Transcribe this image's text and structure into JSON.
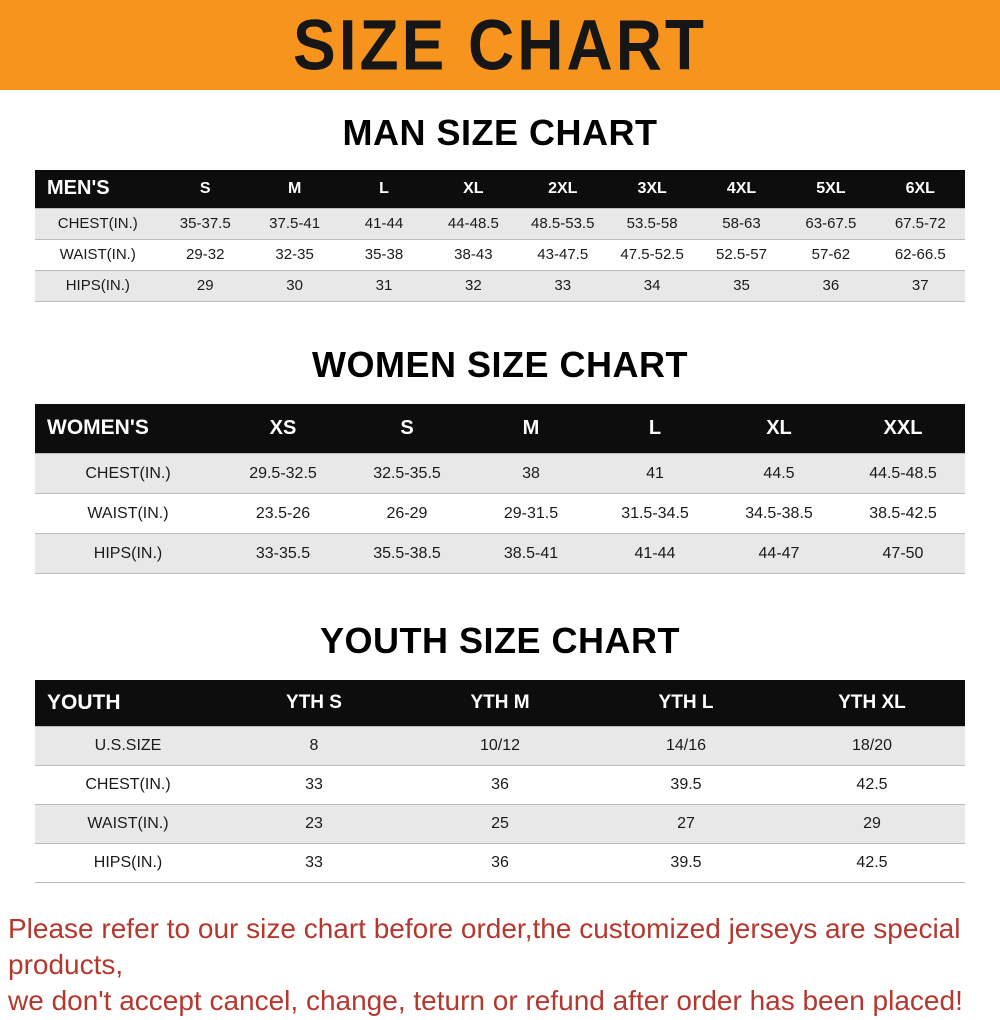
{
  "banner": {
    "title": "SIZE CHART"
  },
  "colors": {
    "banner_bg": "#f7941e",
    "header_bg": "#0d0d0d",
    "header_text": "#ffffff",
    "row_stripe": "#e8e8e8",
    "row_border": "#bdbdbd",
    "disclaimer_text": "#b5382e"
  },
  "chart_data": [
    {
      "type": "table",
      "title": "MAN SIZE CHART",
      "header": [
        "MEN'S",
        "S",
        "M",
        "L",
        "XL",
        "2XL",
        "3XL",
        "4XL",
        "5XL",
        "6XL"
      ],
      "rows": [
        [
          "CHEST(IN.)",
          "35-37.5",
          "37.5-41",
          "41-44",
          "44-48.5",
          "48.5-53.5",
          "53.5-58",
          "58-63",
          "63-67.5",
          "67.5-72"
        ],
        [
          "WAIST(IN.)",
          "29-32",
          "32-35",
          "35-38",
          "38-43",
          "43-47.5",
          "47.5-52.5",
          "52.5-57",
          "57-62",
          "62-66.5"
        ],
        [
          "HIPS(IN.)",
          "29",
          "30",
          "31",
          "32",
          "33",
          "34",
          "35",
          "36",
          "37"
        ]
      ]
    },
    {
      "type": "table",
      "title": "WOMEN SIZE CHART",
      "header": [
        "WOMEN'S",
        "XS",
        "S",
        "M",
        "L",
        "XL",
        "XXL"
      ],
      "rows": [
        [
          "CHEST(IN.)",
          "29.5-32.5",
          "32.5-35.5",
          "38",
          "41",
          "44.5",
          "44.5-48.5"
        ],
        [
          "WAIST(IN.)",
          "23.5-26",
          "26-29",
          "29-31.5",
          "31.5-34.5",
          "34.5-38.5",
          "38.5-42.5"
        ],
        [
          "HIPS(IN.)",
          "33-35.5",
          "35.5-38.5",
          "38.5-41",
          "41-44",
          "44-47",
          "47-50"
        ]
      ]
    },
    {
      "type": "table",
      "title": "YOUTH SIZE CHART",
      "header": [
        "YOUTH",
        "YTH S",
        "YTH M",
        "YTH L",
        "YTH XL"
      ],
      "rows": [
        [
          "U.S.SIZE",
          "8",
          "10/12",
          "14/16",
          "18/20"
        ],
        [
          "CHEST(IN.)",
          "33",
          "36",
          "39.5",
          "42.5"
        ],
        [
          "WAIST(IN.)",
          "23",
          "25",
          "27",
          "29"
        ],
        [
          "HIPS(IN.)",
          "33",
          "36",
          "39.5",
          "42.5"
        ]
      ]
    }
  ],
  "footer": {
    "line1": "Please refer to our size chart before order,the customized jerseys are special products,",
    "line2": "we don't accept cancel, change, teturn or refund after order has been placed!"
  }
}
